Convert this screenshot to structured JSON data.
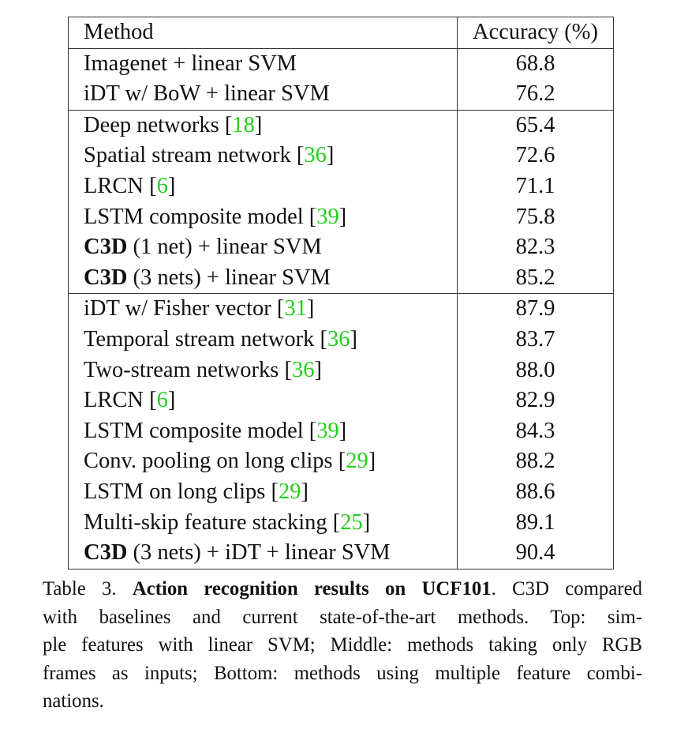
{
  "table": {
    "headers": {
      "method": "Method",
      "accuracy": "Accuracy (%)"
    },
    "groups": [
      [
        {
          "method": "Imagenet + linear SVM",
          "ref": "",
          "accuracy": "68.8"
        },
        {
          "method": "iDT w/ BoW + linear SVM",
          "ref": "",
          "accuracy": "76.2"
        }
      ],
      [
        {
          "method": "Deep networks",
          "ref": "18",
          "accuracy": "65.4"
        },
        {
          "method": "Spatial stream network",
          "ref": "36",
          "accuracy": "72.6"
        },
        {
          "method": "LRCN",
          "ref": "6",
          "accuracy": "71.1"
        },
        {
          "method": "LSTM composite model",
          "ref": "39",
          "accuracy": "75.8"
        },
        {
          "method_bold": "C3D",
          "method": "(1 net) + linear SVM",
          "ref": "",
          "accuracy": "82.3"
        },
        {
          "method_bold": "C3D",
          "method": "(3 nets) + linear SVM",
          "ref": "",
          "accuracy": "85.2",
          "accuracy_bold": true
        }
      ],
      [
        {
          "method": "iDT w/ Fisher vector",
          "ref": "31",
          "accuracy": "87.9"
        },
        {
          "method": "Temporal stream network",
          "ref": "36",
          "accuracy": "83.7"
        },
        {
          "method": "Two-stream networks",
          "ref": "36",
          "accuracy": "88.0"
        },
        {
          "method": "LRCN",
          "ref": "6",
          "accuracy": "82.9"
        },
        {
          "method": "LSTM composite model",
          "ref": "39",
          "accuracy": "84.3"
        },
        {
          "method": "Conv. pooling on long clips",
          "ref": "29",
          "accuracy": "88.2"
        },
        {
          "method": "LSTM on long clips",
          "ref": "29",
          "accuracy": "88.6"
        },
        {
          "method": "Multi-skip feature stacking",
          "ref": "25",
          "accuracy": "89.1"
        },
        {
          "method_bold": "C3D",
          "method": "(3 nets) + iDT + linear SVM",
          "ref": "",
          "accuracy": "90.4",
          "accuracy_bold": true
        }
      ]
    ]
  },
  "caption": {
    "label": "Table 3.",
    "title": "Action recognition results on UCF101",
    "lines": [
      "C3D compared",
      "with baselines and current state-of-the-art methods.  Top: sim-",
      "ple features with linear SVM; Middle: methods taking only RGB",
      "frames as inputs; Bottom: methods using multiple feature combi-",
      "nations."
    ]
  },
  "colors": {
    "reference_link": "#22d01a",
    "text": "#111111"
  }
}
